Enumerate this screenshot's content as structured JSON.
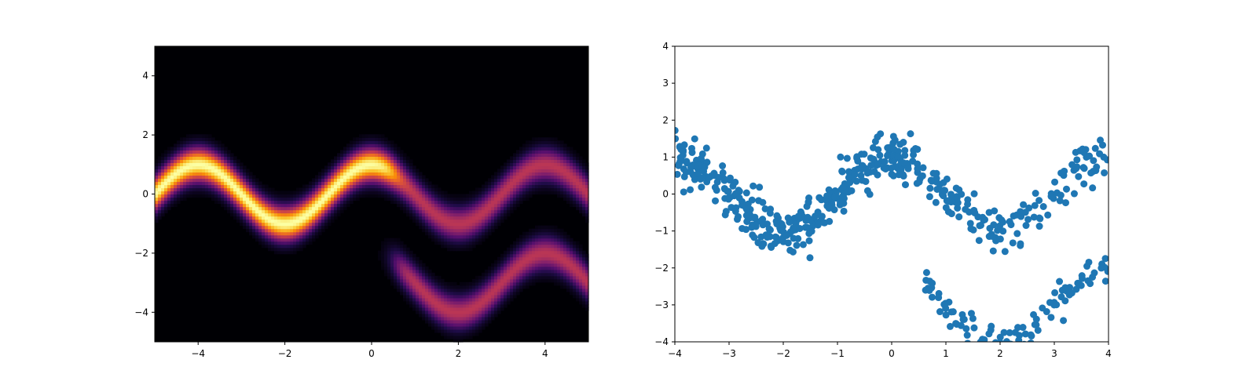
{
  "chart_data": [
    {
      "type": "heatmap",
      "title": "",
      "xlabel": "",
      "ylabel": "",
      "xlim": [
        -5,
        5
      ],
      "ylim": [
        -5,
        5
      ],
      "xticks": [
        -4,
        -2,
        0,
        2,
        4
      ],
      "yticks": [
        -4,
        -2,
        0,
        2,
        4
      ],
      "colormap": "inferno",
      "grid": false,
      "density_bands": [
        {
          "x_range": [
            -5,
            0.55
          ],
          "center": "sin(pi*(x+1)/2)",
          "weight": 1.0
        },
        {
          "x_range": [
            0.55,
            5
          ],
          "center": "sin(pi*(x+1)/2)",
          "weight": 0.5
        },
        {
          "x_range": [
            0.55,
            5
          ],
          "center": "sin(pi*(x+1)/2) - 3",
          "weight": 0.5
        }
      ]
    },
    {
      "type": "scatter",
      "title": "",
      "xlabel": "",
      "ylabel": "",
      "xlim": [
        -4,
        4
      ],
      "ylim": [
        -4,
        4
      ],
      "xticks": [
        -4,
        -3,
        -2,
        -1,
        0,
        1,
        2,
        3,
        4
      ],
      "yticks": [
        -4,
        -3,
        -2,
        -1,
        0,
        1,
        2,
        3,
        4
      ],
      "marker_color": "#1f77b4",
      "grid": false,
      "n_points": 600,
      "branches": [
        {
          "x_range": [
            -4,
            0.55
          ],
          "center": "sin(pi*(x+1)/2)",
          "noise_sd": 0.35
        },
        {
          "x_range": [
            0.55,
            4
          ],
          "center": "sin(pi*(x+1)/2)",
          "noise_sd": 0.35
        },
        {
          "x_range": [
            0.55,
            4
          ],
          "center": "sin(pi*(x+1)/2) - 3",
          "noise_sd": 0.25
        }
      ]
    }
  ]
}
